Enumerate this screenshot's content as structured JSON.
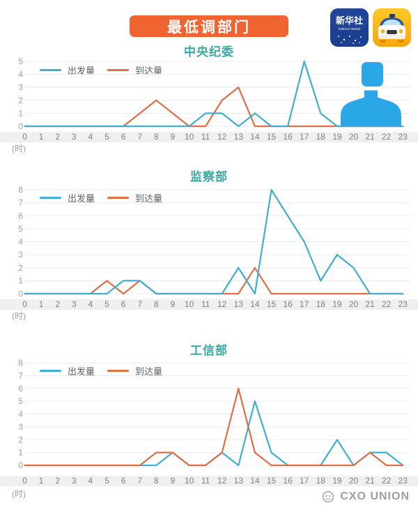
{
  "banner": {
    "title": "最低调部门",
    "bg_color": "#EF6430"
  },
  "logos": {
    "xinhua": {
      "line1": "新华社",
      "line2": "XINHUA NEWS",
      "bg_color": "#1C3F92"
    },
    "taxi": {
      "name": "taxi-app-icon",
      "bg_color": "#FBAF18"
    }
  },
  "colors": {
    "chart_title": "#3BA8A3",
    "depart_line": "#3EAED3",
    "arrive_line": "#DF6E45",
    "silhouette": "#2AA7E6",
    "gridline": "#E8EDF1",
    "axis_strip_bg": "#F0F0F0"
  },
  "axis": {
    "hours": [
      "0",
      "1",
      "2",
      "3",
      "4",
      "5",
      "6",
      "7",
      "8",
      "9",
      "10",
      "11",
      "12",
      "13",
      "14",
      "15",
      "16",
      "17",
      "18",
      "19",
      "20",
      "21",
      "22",
      "23"
    ]
  },
  "chart_data": [
    {
      "type": "line",
      "title": "中央纪委",
      "xlabel": "(时)",
      "ylim": [
        0,
        5
      ],
      "yticks": [
        0,
        1,
        2,
        3,
        4,
        5
      ],
      "grid": true,
      "legend_position": "top-left",
      "x": [
        0,
        1,
        2,
        3,
        4,
        5,
        6,
        7,
        8,
        9,
        10,
        11,
        12,
        13,
        14,
        15,
        16,
        17,
        18,
        19,
        20,
        21,
        22,
        23
      ],
      "series": [
        {
          "name": "出发量",
          "color": "#3EAED3",
          "values": [
            0,
            0,
            0,
            0,
            0,
            0,
            0,
            0,
            0,
            0,
            0,
            1,
            1,
            0,
            1,
            0,
            0,
            5,
            1,
            0,
            0,
            0,
            0,
            0
          ]
        },
        {
          "name": "到达量",
          "color": "#DF6E45",
          "values": [
            0,
            0,
            0,
            0,
            0,
            0,
            0,
            1,
            2,
            1,
            0,
            0,
            2,
            3,
            0,
            0,
            0,
            0,
            0,
            0,
            0,
            0,
            0,
            0
          ]
        }
      ]
    },
    {
      "type": "line",
      "title": "监察部",
      "xlabel": "(时)",
      "ylim": [
        0,
        8
      ],
      "yticks": [
        0,
        1,
        2,
        3,
        4,
        5,
        6,
        7,
        8
      ],
      "grid": true,
      "legend_position": "top-left",
      "x": [
        0,
        1,
        2,
        3,
        4,
        5,
        6,
        7,
        8,
        9,
        10,
        11,
        12,
        13,
        14,
        15,
        16,
        17,
        18,
        19,
        20,
        21,
        22,
        23
      ],
      "series": [
        {
          "name": "出发量",
          "color": "#3EAED3",
          "values": [
            0,
            0,
            0,
            0,
            0,
            0,
            1,
            1,
            0,
            0,
            0,
            0,
            0,
            2,
            0,
            8,
            6,
            4,
            1,
            3,
            2,
            0,
            0,
            0
          ]
        },
        {
          "name": "到达量",
          "color": "#DF6E45",
          "values": [
            0,
            0,
            0,
            0,
            0,
            1,
            0,
            1,
            0,
            0,
            0,
            0,
            0,
            0,
            2,
            0,
            0,
            0,
            0,
            0,
            0,
            0,
            0,
            0
          ]
        }
      ]
    },
    {
      "type": "line",
      "title": "工信部",
      "xlabel": "(时)",
      "ylim": [
        0,
        8
      ],
      "yticks": [
        0,
        1,
        2,
        3,
        4,
        5,
        6,
        7,
        8
      ],
      "grid": true,
      "legend_position": "top-left",
      "x": [
        0,
        1,
        2,
        3,
        4,
        5,
        6,
        7,
        8,
        9,
        10,
        11,
        12,
        13,
        14,
        15,
        16,
        17,
        18,
        19,
        20,
        21,
        22,
        23
      ],
      "series": [
        {
          "name": "出发量",
          "color": "#3EAED3",
          "values": [
            0,
            0,
            0,
            0,
            0,
            0,
            0,
            0,
            0,
            1,
            0,
            0,
            1,
            0,
            5,
            1,
            0,
            0,
            0,
            2,
            0,
            1,
            1,
            0
          ]
        },
        {
          "name": "到达量",
          "color": "#DF6E45",
          "values": [
            0,
            0,
            0,
            0,
            0,
            0,
            0,
            0,
            1,
            1,
            0,
            0,
            1,
            6,
            1,
            0,
            0,
            0,
            0,
            0,
            0,
            1,
            0,
            0
          ]
        }
      ]
    }
  ],
  "footer": {
    "brand": "CXO UNION"
  }
}
